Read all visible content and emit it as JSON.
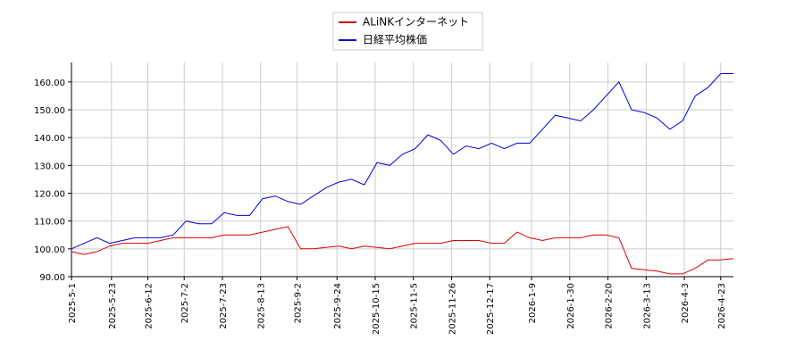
{
  "chart_data": {
    "type": "line",
    "x": [
      "2025-5-1",
      "2025-5-8",
      "2025-5-15",
      "2025-5-22",
      "2025-5-29",
      "2025-6-5",
      "2025-6-12",
      "2025-6-19",
      "2025-6-26",
      "2025-7-3",
      "2025-7-10",
      "2025-7-17",
      "2025-7-24",
      "2025-7-31",
      "2025-8-7",
      "2025-8-14",
      "2025-8-21",
      "2025-8-28",
      "2025-9-4",
      "2025-9-11",
      "2025-9-18",
      "2025-9-25",
      "2025-10-2",
      "2025-10-9",
      "2025-10-16",
      "2025-10-23",
      "2025-10-30",
      "2025-11-6",
      "2025-11-13",
      "2025-11-20",
      "2025-11-27",
      "2025-12-4",
      "2025-12-11",
      "2025-12-18",
      "2025-12-25",
      "2026-1-1",
      "2026-1-8",
      "2026-1-15",
      "2026-1-22",
      "2026-1-29",
      "2026-2-5",
      "2026-2-12",
      "2026-2-19",
      "2026-2-26",
      "2026-3-5",
      "2026-3-12",
      "2026-3-19",
      "2026-3-26",
      "2026-4-2",
      "2026-4-9",
      "2026-4-16",
      "2026-4-23",
      "2026-4-30"
    ],
    "series": [
      {
        "name": "ALiNKインターネット",
        "color": "#dd0000",
        "values": [
          99,
          98,
          99,
          101,
          102,
          102,
          102,
          103,
          104,
          104,
          104,
          104,
          105,
          105,
          105,
          106,
          107,
          108,
          100,
          100,
          100.5,
          101,
          100,
          101,
          100.5,
          100,
          101,
          102,
          102,
          102,
          103,
          103,
          103,
          102,
          102,
          106,
          104,
          103,
          104,
          104,
          104,
          105,
          105,
          104,
          93,
          92.5,
          92,
          91,
          91,
          93,
          96,
          96,
          96.5
        ]
      },
      {
        "name": "日経平均株価",
        "color": "#0000dd",
        "values": [
          100,
          102,
          104,
          102,
          103,
          104,
          104,
          104,
          105,
          110,
          109,
          109,
          113,
          112,
          112,
          118,
          119,
          117,
          116,
          119,
          122,
          124,
          125,
          123,
          131,
          130,
          134,
          136,
          141,
          139,
          134,
          137,
          136,
          138,
          136,
          138,
          138,
          143,
          148,
          147,
          146,
          150,
          155,
          160,
          150,
          149,
          147,
          143,
          146,
          155,
          158,
          163,
          163
        ]
      }
    ],
    "xlim": [
      "2025-5-1",
      "2026-4-30"
    ],
    "xticks": [
      "2025-5-1",
      "2025-5-23",
      "2025-6-12",
      "2025-7-2",
      "2025-7-23",
      "2025-8-13",
      "2025-9-2",
      "2025-9-24",
      "2025-10-15",
      "2025-11-5",
      "2025-11-26",
      "2025-12-17",
      "2026-1-9",
      "2026-1-30",
      "2026-2-20",
      "2026-3-13",
      "2026-4-3",
      "2026-4-23"
    ],
    "ylim": [
      90,
      167
    ],
    "yticks": [
      {
        "value": 90,
        "label": "90.00"
      },
      {
        "value": 100,
        "label": "100.00"
      },
      {
        "value": 110,
        "label": "110.00"
      },
      {
        "value": 120,
        "label": "120.00"
      },
      {
        "value": 130,
        "label": "130.00"
      },
      {
        "value": 140,
        "label": "140.00"
      },
      {
        "value": 150,
        "label": "150.00"
      },
      {
        "value": 160,
        "label": "160.00"
      }
    ],
    "grid": true,
    "legend": "top"
  }
}
